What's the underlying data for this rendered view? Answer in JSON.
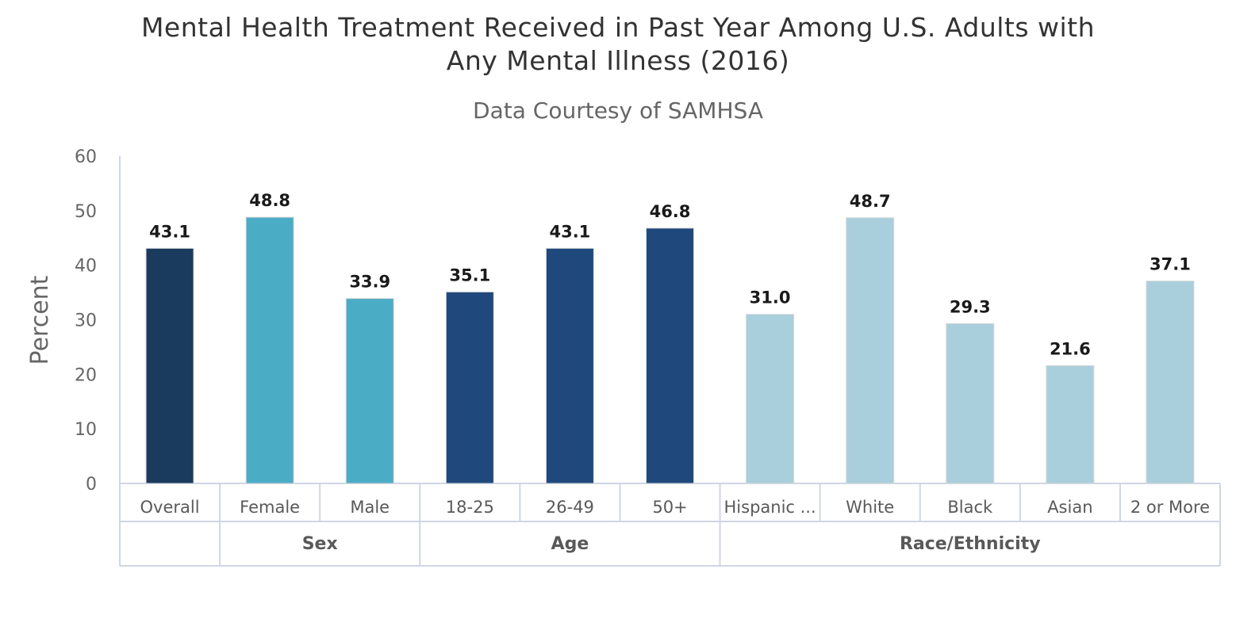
{
  "chart_data": {
    "type": "bar",
    "title_line1": "Mental Health Treatment Received in Past Year Among U.S. Adults with",
    "title_line2": "Any Mental Illness (2016)",
    "subtitle": "Data Courtesy of SAMHSA",
    "ylabel": "Percent",
    "xlabel": "",
    "ylim": [
      0,
      60
    ],
    "yticks": [
      0,
      10,
      20,
      30,
      40,
      50,
      60
    ],
    "categories": [
      "Overall",
      "Female",
      "Male",
      "18-25",
      "26-49",
      "50+",
      "Hispanic ...",
      "White",
      "Black",
      "Asian",
      "2 or More"
    ],
    "values": [
      43.1,
      48.8,
      33.9,
      35.1,
      43.1,
      46.8,
      31.0,
      48.7,
      29.3,
      21.6,
      37.1
    ],
    "value_labels": [
      "43.1",
      "48.8",
      "33.9",
      "35.1",
      "43.1",
      "46.8",
      "31.0",
      "48.7",
      "29.3",
      "21.6",
      "37.1"
    ],
    "colors": [
      "#1a3a5e",
      "#4bacc6",
      "#4bacc6",
      "#1f497d",
      "#1f497d",
      "#1f497d",
      "#a9cedc",
      "#a9cedc",
      "#a9cedc",
      "#a9cedc",
      "#a9cedc"
    ],
    "groups": [
      {
        "label": "",
        "start": 0,
        "count": 1
      },
      {
        "label": "Sex",
        "start": 1,
        "count": 2
      },
      {
        "label": "Age",
        "start": 3,
        "count": 3
      },
      {
        "label": "Race/Ethnicity",
        "start": 6,
        "count": 5
      }
    ],
    "grid": false,
    "legend": "none"
  }
}
